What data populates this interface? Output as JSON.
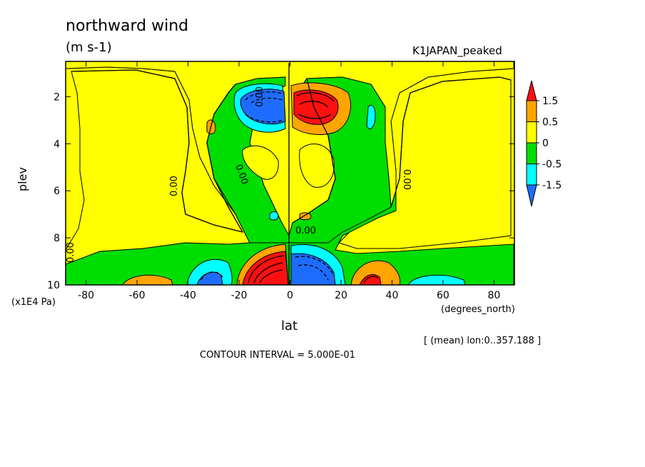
{
  "header": {
    "title": "northward wind",
    "units": "(m s-1)",
    "model": "K1JAPAN_peaked"
  },
  "footer": {
    "mean_note": "[ (mean) lon:0..357.188 ]",
    "contour_interval": "CONTOUR INTERVAL = 5.000E-01"
  },
  "colors": {
    "lt_m1": "#1e6cff",
    "m1_m05": "#00ffff",
    "m05_0": "#00dd00",
    "0_05": "#ffff00",
    "05_1": "#ffa500",
    "gt_1": "#ff1010"
  },
  "chart_data": {
    "type": "heatmap",
    "title": "northward wind",
    "subtitle": "(m s-1)",
    "xlabel": "lat",
    "xunit": "(degrees_north)",
    "ylabel": "plev",
    "yunit": "(x1E4 Pa)",
    "xlim": [
      -88,
      88
    ],
    "ylim": [
      0.5,
      10
    ],
    "y_inverted": true,
    "x_ticks": [
      -80,
      -60,
      -40,
      -20,
      0,
      20,
      40,
      60,
      80
    ],
    "y_ticks": [
      2,
      4,
      6,
      8,
      10
    ],
    "contour_interval": 0.5,
    "contour_labels": [
      "0.00",
      "0.00",
      "0.00",
      "0.00",
      "0.00",
      "0.00"
    ],
    "colorbar": {
      "labels": [
        "1.5",
        "0.5",
        "0",
        "-0.5",
        "-1.5"
      ],
      "bins": [
        "<-1.5",
        "-1.5 to -0.5",
        "-0.5 to 0",
        "0 to 0.5",
        "0.5 to 1.5",
        ">1.5"
      ]
    }
  }
}
